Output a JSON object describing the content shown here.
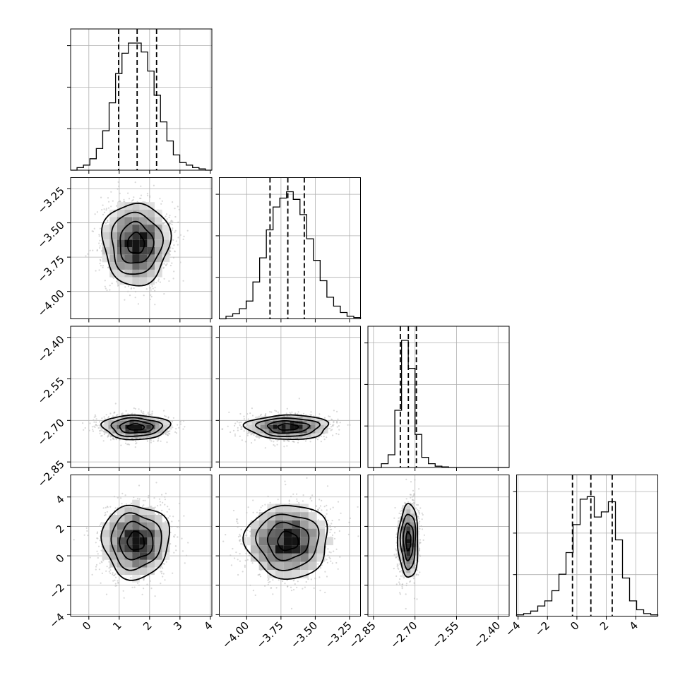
{
  "chart_data": {
    "type": "corner",
    "grid": true,
    "parameters": [
      {
        "range": [
          -0.6,
          4.05
        ],
        "ticks": [
          0,
          1,
          2,
          3,
          4
        ],
        "tick_labels": [
          "0",
          "1",
          "2",
          "3",
          "4"
        ],
        "quantiles": [
          0.98,
          1.59,
          2.23
        ],
        "hist_edges": [
          -0.6,
          -0.4,
          4.05
        ],
        "hist_counts": [
          0,
          0.02,
          0.04,
          0.09,
          0.17,
          0.31,
          0.53,
          0.76,
          0.92,
          1.0,
          1.0,
          0.93,
          0.78,
          0.59,
          0.38,
          0.23,
          0.12,
          0.06,
          0.04,
          0.02,
          0.01,
          0
        ]
      },
      {
        "range": [
          -4.2,
          -3.17
        ],
        "ticks": [
          -4.0,
          -3.75,
          -3.5,
          -3.25
        ],
        "tick_labels": [
          "−4.00",
          "−3.75",
          "−3.50",
          "−3.25"
        ],
        "quantiles": [
          -3.83,
          -3.7,
          -3.58
        ],
        "hist_counts": [
          0,
          0.02,
          0.04,
          0.08,
          0.14,
          0.29,
          0.48,
          0.7,
          0.88,
          0.95,
          1.0,
          0.94,
          0.82,
          0.63,
          0.46,
          0.3,
          0.17,
          0.1,
          0.05,
          0.02,
          0.01
        ]
      },
      {
        "range": [
          -2.87,
          -2.36
        ],
        "ticks": [
          -2.85,
          -2.7,
          -2.55,
          -2.4
        ],
        "tick_labels": [
          "−2.85",
          "−2.70",
          "−2.55",
          "−2.40"
        ],
        "quantiles": [
          -2.753,
          -2.724,
          -2.695
        ],
        "hist_counts": [
          0,
          0,
          0.03,
          0.1,
          0.45,
          1.0,
          0.78,
          0.26,
          0.08,
          0.03,
          0.01,
          0.005,
          0,
          0,
          0,
          0,
          0,
          0,
          0,
          0,
          0
        ]
      },
      {
        "range": [
          -4.1,
          5.5
        ],
        "ticks": [
          -4,
          -2,
          0,
          2,
          4
        ],
        "tick_labels": [
          "−4",
          "−2",
          "0",
          "2",
          "4"
        ],
        "quantiles": [
          -0.3,
          0.95,
          2.4
        ],
        "hist_counts": [
          0.01,
          0.02,
          0.04,
          0.08,
          0.12,
          0.2,
          0.33,
          0.5,
          0.72,
          0.92,
          0.94,
          0.78,
          0.82,
          0.9,
          0.6,
          0.3,
          0.12,
          0.05,
          0.02,
          0.01
        ]
      }
    ],
    "pairs": [
      {
        "x": 0,
        "y": 1,
        "mean": [
          1.55,
          -3.65
        ],
        "sd": [
          0.55,
          0.15
        ],
        "rho": 0.0
      },
      {
        "x": 0,
        "y": 2,
        "mean": [
          1.55,
          -2.724
        ],
        "sd": [
          0.55,
          0.022
        ],
        "rho": 0.0
      },
      {
        "x": 1,
        "y": 2,
        "mean": [
          -3.7,
          -2.724
        ],
        "sd": [
          0.15,
          0.022
        ],
        "rho": 0.0
      },
      {
        "x": 0,
        "y": 3,
        "mean": [
          1.55,
          1.0
        ],
        "sd": [
          0.55,
          1.25
        ],
        "rho": 0.05
      },
      {
        "x": 1,
        "y": 3,
        "mean": [
          -3.7,
          1.0
        ],
        "sd": [
          0.15,
          1.25
        ],
        "rho": 0.05
      },
      {
        "x": 2,
        "y": 3,
        "mean": [
          -2.724,
          1.0
        ],
        "sd": [
          0.018,
          1.25
        ],
        "rho": 0.1
      }
    ],
    "title": "",
    "xlabel": "",
    "ylabel": ""
  }
}
